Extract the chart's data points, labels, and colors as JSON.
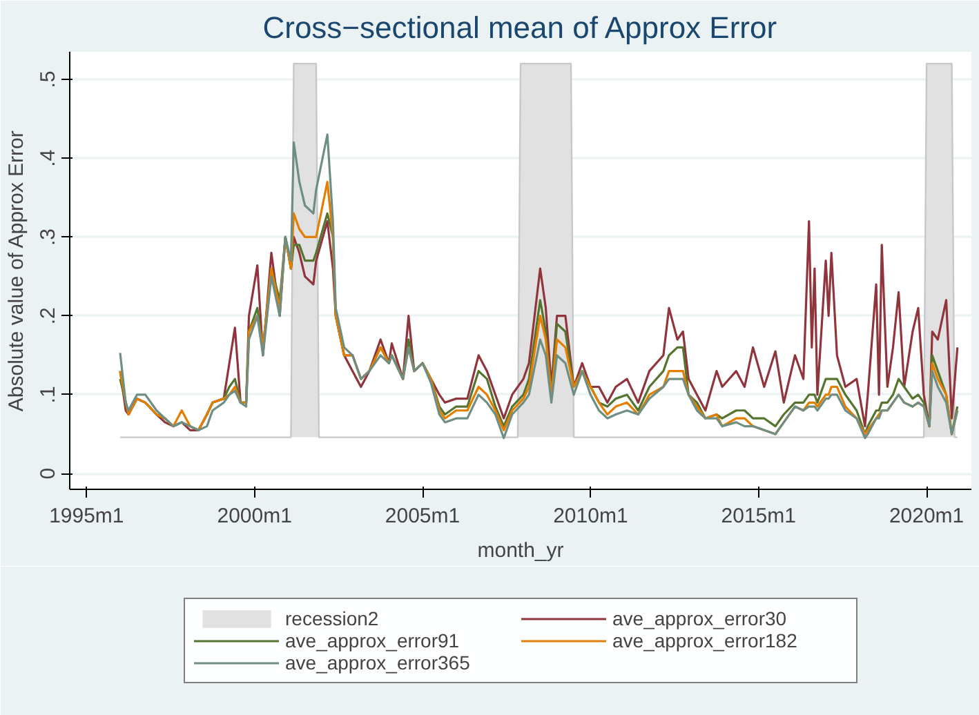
{
  "chart_data": {
    "type": "line",
    "title": "Cross−sectional mean of Approx Error",
    "xlabel": "month_yr",
    "ylabel": "Absolute value of Approx Error",
    "xlim": [
      "1994-07",
      "2021-05"
    ],
    "ylim": [
      -0.02,
      0.535
    ],
    "xticks": [
      {
        "value": "1995-01",
        "label": "1995m1"
      },
      {
        "value": "2000-01",
        "label": "2000m1"
      },
      {
        "value": "2005-01",
        "label": "2005m1"
      },
      {
        "value": "2010-01",
        "label": "2010m1"
      },
      {
        "value": "2015-01",
        "label": "2015m1"
      },
      {
        "value": "2020-01",
        "label": "2020m1"
      }
    ],
    "yticks": [
      0,
      {
        "value": 0.1,
        "label": ".1"
      },
      {
        "value": 0.2,
        "label": ".2"
      },
      {
        "value": 0.3,
        "label": ".3"
      },
      {
        "value": 0.4,
        "label": ".4"
      },
      {
        "value": 0.5,
        "label": ".5"
      }
    ],
    "grid": "y",
    "legend": "bottom",
    "line_style": "solid",
    "x": [
      "1996-01",
      "1996-03",
      "1996-04",
      "1996-07",
      "1996-10",
      "1997-02",
      "1997-05",
      "1997-08",
      "1997-11",
      "1998-02",
      "1998-05",
      "1998-08",
      "1998-10",
      "1999-02",
      "1999-04",
      "1999-06",
      "1999-08",
      "1999-10",
      "1999-11",
      "2000-02",
      "2000-04",
      "2000-07",
      "2000-10",
      "2000-12",
      "2001-02",
      "2001-03",
      "2001-05",
      "2001-07",
      "2001-10",
      "2001-11",
      "2002-03",
      "2002-05",
      "2002-06",
      "2002-09",
      "2002-12",
      "2003-03",
      "2003-06",
      "2003-10",
      "2004-01",
      "2004-02",
      "2004-06",
      "2004-08",
      "2004-10",
      "2005-01",
      "2005-04",
      "2005-07",
      "2005-09",
      "2006-01",
      "2006-05",
      "2006-09",
      "2006-12",
      "2007-03",
      "2007-06",
      "2007-09",
      "2008-01",
      "2008-03",
      "2008-07",
      "2008-09",
      "2008-11",
      "2009-01",
      "2009-04",
      "2009-07",
      "2009-10",
      "2010-01",
      "2010-04",
      "2010-07",
      "2010-10",
      "2011-02",
      "2011-06",
      "2011-10",
      "2012-03",
      "2012-05",
      "2012-08",
      "2012-10",
      "2012-12",
      "2013-03",
      "2013-06",
      "2013-10",
      "2013-12",
      "2014-05",
      "2014-08",
      "2014-11",
      "2015-03",
      "2015-07",
      "2015-10",
      "2016-02",
      "2016-05",
      "2016-07",
      "2016-08",
      "2016-09",
      "2016-10",
      "2017-01",
      "2017-02",
      "2017-03",
      "2017-05",
      "2017-08",
      "2017-12",
      "2018-03",
      "2018-04",
      "2018-07",
      "2018-08",
      "2018-09",
      "2018-11",
      "2019-01",
      "2019-03",
      "2019-05",
      "2019-08",
      "2019-10",
      "2019-12",
      "2020-02",
      "2020-03",
      "2020-05",
      "2020-08",
      "2020-10",
      "2020-12"
    ],
    "series": [
      {
        "name": "recession2",
        "type": "area",
        "color": "#e1e1e1",
        "x": [
          "1996-01",
          "2001-02",
          "2001-03",
          "2001-11",
          "2001-12",
          "2007-11",
          "2007-12",
          "2009-06",
          "2009-07",
          "2019-12",
          "2020-01",
          "2020-10",
          "2020-11",
          "2020-12"
        ],
        "values": [
          0.046,
          0.046,
          0.52,
          0.52,
          0.046,
          0.046,
          0.52,
          0.52,
          0.046,
          0.046,
          0.52,
          0.52,
          0.046,
          0.046
        ]
      },
      {
        "name": "ave_approx_error30",
        "color": "#90353b",
        "values": [
          0.13,
          0.08,
          0.075,
          0.095,
          0.09,
          0.075,
          0.065,
          0.06,
          0.065,
          0.055,
          0.055,
          0.075,
          0.09,
          0.095,
          0.14,
          0.185,
          0.09,
          0.09,
          0.2,
          0.264,
          0.15,
          0.28,
          0.2,
          0.3,
          0.26,
          0.3,
          0.28,
          0.25,
          0.24,
          0.27,
          0.32,
          0.26,
          0.2,
          0.15,
          0.13,
          0.11,
          0.13,
          0.17,
          0.14,
          0.165,
          0.12,
          0.2,
          0.13,
          0.14,
          0.12,
          0.1,
          0.09,
          0.095,
          0.095,
          0.15,
          0.13,
          0.1,
          0.07,
          0.1,
          0.12,
          0.14,
          0.26,
          0.21,
          0.11,
          0.2,
          0.2,
          0.11,
          0.14,
          0.11,
          0.11,
          0.09,
          0.11,
          0.12,
          0.09,
          0.13,
          0.15,
          0.21,
          0.17,
          0.18,
          0.12,
          0.1,
          0.08,
          0.13,
          0.11,
          0.13,
          0.11,
          0.16,
          0.11,
          0.155,
          0.09,
          0.15,
          0.12,
          0.32,
          0.16,
          0.26,
          0.1,
          0.27,
          0.2,
          0.28,
          0.15,
          0.11,
          0.12,
          0.06,
          0.1,
          0.24,
          0.1,
          0.29,
          0.11,
          0.16,
          0.23,
          0.11,
          0.18,
          0.21,
          0.1,
          0.06,
          0.18,
          0.17,
          0.22,
          0.07,
          0.16
        ]
      },
      {
        "name": "ave_approx_error91",
        "color": "#55752f",
        "values": [
          0.12,
          0.09,
          0.075,
          0.095,
          0.09,
          0.075,
          0.07,
          0.06,
          0.065,
          0.06,
          0.055,
          0.075,
          0.09,
          0.095,
          0.11,
          0.12,
          0.09,
          0.09,
          0.18,
          0.21,
          0.16,
          0.26,
          0.22,
          0.3,
          0.26,
          0.29,
          0.29,
          0.27,
          0.27,
          0.28,
          0.33,
          0.3,
          0.2,
          0.15,
          0.15,
          0.12,
          0.13,
          0.16,
          0.14,
          0.15,
          0.12,
          0.17,
          0.13,
          0.14,
          0.12,
          0.085,
          0.075,
          0.085,
          0.085,
          0.13,
          0.12,
          0.085,
          0.06,
          0.085,
          0.1,
          0.12,
          0.22,
          0.18,
          0.1,
          0.19,
          0.18,
          0.11,
          0.13,
          0.11,
          0.09,
          0.085,
          0.095,
          0.1,
          0.08,
          0.11,
          0.13,
          0.15,
          0.16,
          0.16,
          0.1,
          0.09,
          0.07,
          0.075,
          0.07,
          0.08,
          0.08,
          0.07,
          0.07,
          0.06,
          0.075,
          0.09,
          0.09,
          0.1,
          0.1,
          0.1,
          0.09,
          0.12,
          0.12,
          0.12,
          0.12,
          0.1,
          0.08,
          0.05,
          0.06,
          0.08,
          0.08,
          0.09,
          0.09,
          0.1,
          0.12,
          0.11,
          0.095,
          0.1,
          0.09,
          0.06,
          0.15,
          0.13,
          0.1,
          0.05,
          0.085
        ]
      },
      {
        "name": "ave_approx_error182",
        "color": "#e37e00",
        "values": [
          0.13,
          0.09,
          0.075,
          0.095,
          0.09,
          0.075,
          0.07,
          0.06,
          0.08,
          0.06,
          0.055,
          0.075,
          0.09,
          0.095,
          0.1,
          0.11,
          0.09,
          0.09,
          0.18,
          0.2,
          0.16,
          0.26,
          0.21,
          0.3,
          0.26,
          0.33,
          0.31,
          0.3,
          0.3,
          0.3,
          0.37,
          0.3,
          0.2,
          0.15,
          0.15,
          0.12,
          0.13,
          0.16,
          0.14,
          0.15,
          0.12,
          0.16,
          0.13,
          0.14,
          0.12,
          0.08,
          0.07,
          0.08,
          0.08,
          0.11,
          0.1,
          0.08,
          0.055,
          0.08,
          0.095,
          0.11,
          0.2,
          0.17,
          0.1,
          0.17,
          0.16,
          0.11,
          0.13,
          0.11,
          0.09,
          0.075,
          0.085,
          0.09,
          0.075,
          0.1,
          0.11,
          0.13,
          0.13,
          0.13,
          0.1,
          0.085,
          0.07,
          0.075,
          0.06,
          0.07,
          0.07,
          0.06,
          0.055,
          0.05,
          0.065,
          0.085,
          0.08,
          0.09,
          0.09,
          0.09,
          0.085,
          0.1,
          0.1,
          0.11,
          0.11,
          0.085,
          0.07,
          0.05,
          0.055,
          0.07,
          0.075,
          0.08,
          0.08,
          0.09,
          0.1,
          0.09,
          0.085,
          0.09,
          0.085,
          0.06,
          0.14,
          0.12,
          0.1,
          0.05,
          0.08
        ]
      },
      {
        "name": "ave_approx_error365",
        "color": "#6e8e84",
        "values": [
          0.153,
          0.09,
          0.08,
          0.1,
          0.1,
          0.08,
          0.07,
          0.06,
          0.065,
          0.06,
          0.055,
          0.06,
          0.08,
          0.09,
          0.1,
          0.105,
          0.09,
          0.085,
          0.17,
          0.2,
          0.15,
          0.25,
          0.2,
          0.3,
          0.27,
          0.42,
          0.37,
          0.34,
          0.33,
          0.36,
          0.43,
          0.32,
          0.21,
          0.16,
          0.15,
          0.12,
          0.13,
          0.15,
          0.14,
          0.15,
          0.12,
          0.16,
          0.13,
          0.14,
          0.115,
          0.075,
          0.065,
          0.07,
          0.07,
          0.1,
          0.09,
          0.075,
          0.045,
          0.075,
          0.09,
          0.1,
          0.17,
          0.15,
          0.09,
          0.15,
          0.14,
          0.1,
          0.13,
          0.1,
          0.08,
          0.07,
          0.075,
          0.08,
          0.075,
          0.095,
          0.11,
          0.12,
          0.12,
          0.12,
          0.1,
          0.08,
          0.07,
          0.07,
          0.06,
          0.065,
          0.06,
          0.06,
          0.055,
          0.05,
          0.065,
          0.085,
          0.08,
          0.085,
          0.085,
          0.085,
          0.08,
          0.095,
          0.095,
          0.1,
          0.1,
          0.08,
          0.07,
          0.045,
          0.05,
          0.07,
          0.07,
          0.08,
          0.08,
          0.09,
          0.1,
          0.09,
          0.085,
          0.09,
          0.085,
          0.06,
          0.13,
          0.11,
          0.09,
          0.05,
          0.08
        ]
      }
    ]
  }
}
